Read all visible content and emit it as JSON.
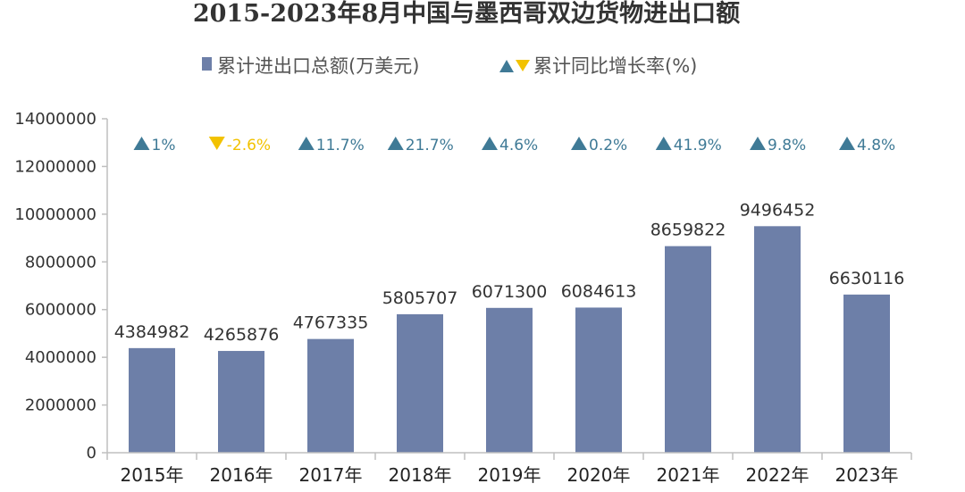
{
  "chart_data": {
    "type": "bar",
    "title": "2015-2023年8月中国与墨西哥双边货物进出口额",
    "legend": {
      "bar_label": "累计进出口总额(万美元)",
      "growth_label": "累计同比增长率(%)",
      "placement": "top"
    },
    "categories": [
      "2015年",
      "2016年",
      "2017年",
      "2018年",
      "2019年",
      "2020年",
      "2021年",
      "2022年",
      "2023年"
    ],
    "series": [
      {
        "name": "累计进出口总额(万美元)",
        "values": [
          4384982,
          4265876,
          4767335,
          5805707,
          6071300,
          6084613,
          8659822,
          9496452,
          6630116
        ],
        "value_labels": [
          "4384982",
          "4265876",
          "4767335",
          "5805707",
          "6071300",
          "6084613",
          "8659822",
          "9496452",
          "6630116"
        ]
      },
      {
        "name": "累计同比增长率(%)",
        "values": [
          1,
          -2.6,
          11.7,
          21.7,
          4.6,
          0.2,
          41.9,
          9.8,
          4.8
        ],
        "value_labels": [
          "1%",
          "-2.6%",
          "11.7%",
          "21.7%",
          "4.6%",
          "0.2%",
          "41.9%",
          "9.8%",
          "4.8%"
        ]
      }
    ],
    "y_ticks": [
      "0",
      "2000000",
      "4000000",
      "6000000",
      "8000000",
      "10000000",
      "12000000",
      "14000000"
    ],
    "ylim": [
      0,
      14000000
    ],
    "grid": false,
    "colors": {
      "bar": "#6d7fa8",
      "up": "#3f7a96",
      "down": "#f2c200"
    }
  }
}
